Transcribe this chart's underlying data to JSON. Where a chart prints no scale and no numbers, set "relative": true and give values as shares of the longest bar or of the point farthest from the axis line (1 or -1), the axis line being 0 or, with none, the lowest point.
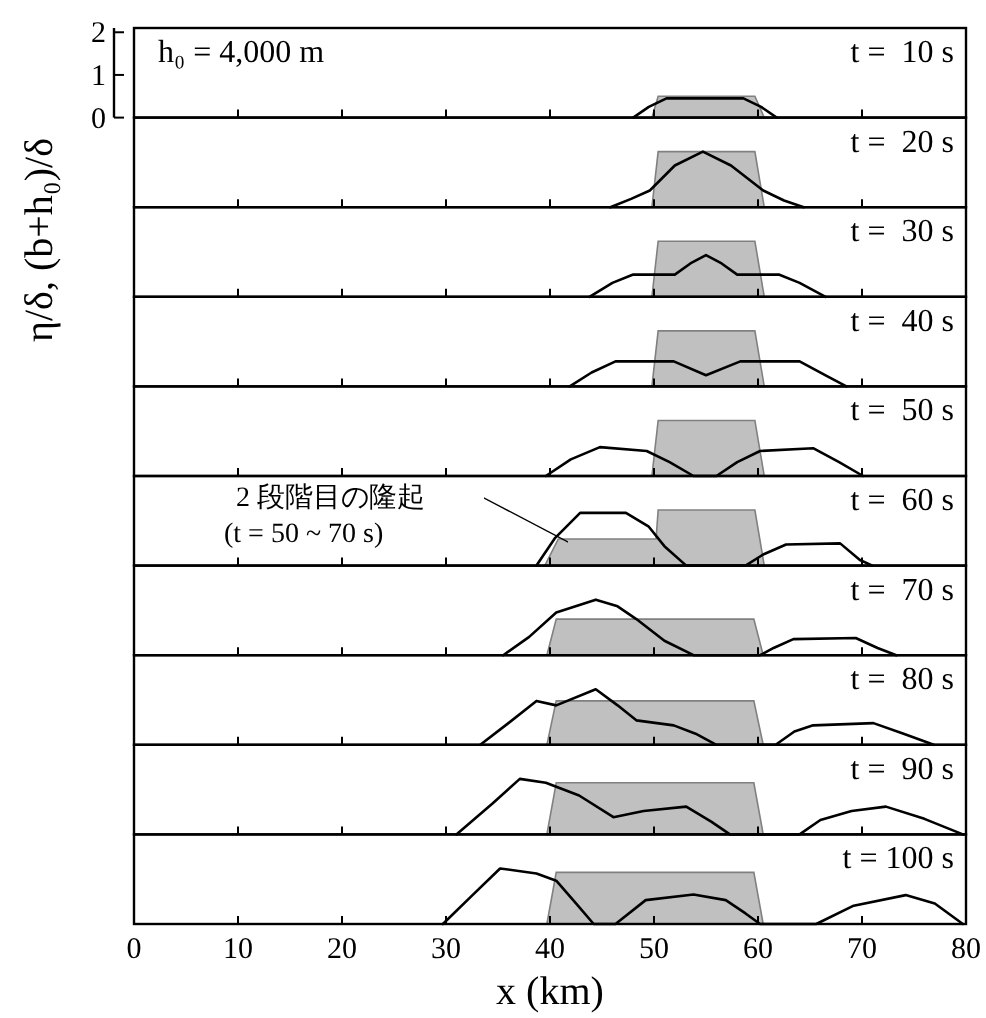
{
  "chart_data": [
    {
      "type": "area",
      "title": "t =  10 s",
      "ylabel": "η/δ, (b+h₀)/δ",
      "annotations": [
        "h₀ = 4,000 m"
      ],
      "xlim": [
        0,
        80
      ],
      "xticks": [
        0,
        10,
        20,
        30,
        40,
        50,
        60,
        70,
        80
      ],
      "ylim": [
        0,
        2.1
      ],
      "yticks": [
        0,
        1,
        2
      ],
      "tick_labels": "y",
      "series": [
        {
          "type": "area",
          "color": "#c0c0c0",
          "x": [
            49.8,
            50.4,
            59.7,
            60.6
          ],
          "values": [
            0,
            0.5,
            0.5,
            0
          ]
        },
        {
          "type": "line",
          "color": "#000000",
          "x": [
            48,
            49.5,
            51.2,
            58.6,
            60.3,
            61.8
          ],
          "values": [
            0,
            0.25,
            0.45,
            0.45,
            0.25,
            0
          ]
        }
      ]
    },
    {
      "type": "area",
      "title": "t =  20 s",
      "relative": true,
      "xlim": [
        0,
        80
      ],
      "xticks": [
        0,
        10,
        20,
        30,
        40,
        50,
        60,
        70,
        80
      ],
      "tick_labels": false,
      "series": [
        {
          "type": "area",
          "color": "#c0c0c0",
          "x": [
            49.8,
            50.4,
            59.7,
            60.6
          ],
          "values": [
            0,
            1,
            1,
            0
          ]
        },
        {
          "type": "line",
          "color": "#000000",
          "x": [
            45.8,
            47.8,
            49.6,
            52,
            54.7,
            57.4,
            60.5,
            62.5,
            64.4
          ],
          "values": [
            0,
            0.15,
            0.3,
            0.75,
            1.0,
            0.75,
            0.3,
            0.12,
            0
          ]
        }
      ]
    },
    {
      "type": "area",
      "title": "t =  30 s",
      "relative": true,
      "xlim": [
        0,
        80
      ],
      "xticks": [
        0,
        10,
        20,
        30,
        40,
        50,
        60,
        70,
        80
      ],
      "tick_labels": false,
      "series": [
        {
          "type": "area",
          "color": "#c0c0c0",
          "x": [
            49.8,
            50.4,
            59.7,
            60.6
          ],
          "values": [
            0,
            1,
            1,
            0
          ]
        },
        {
          "type": "line",
          "color": "#000000",
          "x": [
            43.8,
            46,
            48,
            52,
            53.5,
            55,
            56.5,
            58,
            62,
            64,
            66.5
          ],
          "values": [
            0,
            0.25,
            0.4,
            0.4,
            0.6,
            0.75,
            0.6,
            0.4,
            0.4,
            0.25,
            0
          ]
        }
      ]
    },
    {
      "type": "area",
      "title": "t =  40 s",
      "relative": true,
      "xlim": [
        0,
        80
      ],
      "xticks": [
        0,
        10,
        20,
        30,
        40,
        50,
        60,
        70,
        80
      ],
      "tick_labels": false,
      "series": [
        {
          "type": "area",
          "color": "#c0c0c0",
          "x": [
            49.8,
            50.4,
            59.7,
            60.6
          ],
          "values": [
            0,
            1,
            1,
            0
          ]
        },
        {
          "type": "line",
          "color": "#000000",
          "x": [
            41.9,
            44,
            46.3,
            51.9,
            55,
            58.3,
            64,
            66.5,
            68.5
          ],
          "values": [
            0,
            0.25,
            0.45,
            0.45,
            0.2,
            0.45,
            0.45,
            0.2,
            0
          ]
        }
      ]
    },
    {
      "type": "area",
      "title": "t =  50 s",
      "relative": true,
      "xlim": [
        0,
        80
      ],
      "xticks": [
        0,
        10,
        20,
        30,
        40,
        50,
        60,
        70,
        80
      ],
      "tick_labels": false,
      "series": [
        {
          "type": "area",
          "color": "#c0c0c0",
          "x": [
            49.8,
            50.4,
            59.7,
            60.6
          ],
          "values": [
            0,
            1,
            1,
            0
          ]
        },
        {
          "type": "line",
          "color": "#000000",
          "x": [
            39.6,
            42,
            44.8,
            49.3,
            51.5,
            53.8,
            56,
            58,
            60.2,
            65.3,
            67.8,
            70.1
          ],
          "values": [
            0,
            0.3,
            0.52,
            0.45,
            0.25,
            0,
            0,
            0.25,
            0.45,
            0.5,
            0.25,
            0
          ]
        }
      ]
    },
    {
      "type": "area",
      "title": "t =  60 s",
      "relative": true,
      "annotations": [
        "2 段階目の隆起\n(t = 50 ~ 70 s)"
      ],
      "xlim": [
        0,
        80
      ],
      "xticks": [
        0,
        10,
        20,
        30,
        40,
        50,
        60,
        70,
        80
      ],
      "tick_labels": false,
      "series": [
        {
          "type": "area",
          "color": "#c0c0c0",
          "x": [
            39.5,
            40.8,
            50.2,
            50.4,
            59.7,
            60.6
          ],
          "values": [
            0,
            0.48,
            0.48,
            1,
            1,
            0
          ]
        },
        {
          "type": "line",
          "color": "#000000",
          "x": [
            38.7,
            40.5,
            42.9,
            47.3,
            49.5,
            51,
            53.1,
            58.8,
            60.5,
            62.7,
            67.9,
            69.8,
            71
          ],
          "values": [
            0,
            0.5,
            0.95,
            0.95,
            0.7,
            0.35,
            0,
            0,
            0.2,
            0.38,
            0.4,
            0.1,
            0
          ]
        }
      ]
    },
    {
      "type": "area",
      "title": "t =  70 s",
      "relative": true,
      "xlim": [
        0,
        80
      ],
      "xticks": [
        0,
        10,
        20,
        30,
        40,
        50,
        60,
        70,
        80
      ],
      "tick_labels": false,
      "series": [
        {
          "type": "area",
          "color": "#c0c0c0",
          "x": [
            39.7,
            40.6,
            59.6,
            60.5
          ],
          "values": [
            0,
            0.65,
            0.65,
            0
          ]
        },
        {
          "type": "line",
          "color": "#000000",
          "x": [
            35.5,
            38,
            40.6,
            44.4,
            46.5,
            48.3,
            51,
            53.8,
            60.2,
            61.5,
            63.4,
            69.4,
            71.5,
            73.3
          ],
          "values": [
            0,
            0.33,
            0.77,
            1,
            0.88,
            0.65,
            0.26,
            0,
            0,
            0.13,
            0.29,
            0.31,
            0.13,
            0
          ]
        }
      ]
    },
    {
      "type": "area",
      "title": "t =  80 s",
      "relative": true,
      "xlim": [
        0,
        80
      ],
      "xticks": [
        0,
        10,
        20,
        30,
        40,
        50,
        60,
        70,
        80
      ],
      "tick_labels": false,
      "series": [
        {
          "type": "area",
          "color": "#c0c0c0",
          "x": [
            39.7,
            40.6,
            59.6,
            60.5
          ],
          "values": [
            0,
            0.79,
            0.79,
            0
          ]
        },
        {
          "type": "line",
          "color": "#000000",
          "x": [
            33.3,
            36,
            38.7,
            40.6,
            44.4,
            46.5,
            48.3,
            51.9,
            54,
            56,
            61.7,
            63.5,
            65.3,
            71.1,
            74,
            76.9
          ],
          "values": [
            0,
            0.39,
            0.79,
            0.71,
            1,
            0.71,
            0.44,
            0.35,
            0.2,
            0,
            0,
            0.24,
            0.35,
            0.39,
            0.2,
            0
          ]
        }
      ]
    },
    {
      "type": "area",
      "title": "t =  90 s",
      "relative": true,
      "xlim": [
        0,
        80
      ],
      "xticks": [
        0,
        10,
        20,
        30,
        40,
        50,
        60,
        70,
        80
      ],
      "tick_labels": false,
      "series": [
        {
          "type": "area",
          "color": "#c0c0c0",
          "x": [
            39.7,
            40.6,
            59.6,
            60.5
          ],
          "values": [
            0,
            0.93,
            0.93,
            0
          ]
        },
        {
          "type": "line",
          "color": "#000000",
          "x": [
            31,
            34.5,
            37.1,
            39.6,
            42.8,
            46.1,
            49,
            53.1,
            55.5,
            57.3,
            64,
            66,
            69,
            72.3,
            76,
            79.7
          ],
          "values": [
            0,
            0.56,
            1,
            0.93,
            0.7,
            0.31,
            0.42,
            0.5,
            0.23,
            0,
            0,
            0.26,
            0.42,
            0.5,
            0.28,
            0
          ]
        }
      ]
    },
    {
      "type": "area",
      "title": "t = 100 s",
      "relative": true,
      "xlabel": "x (km)",
      "xlim": [
        0,
        80
      ],
      "xticks": [
        0,
        10,
        20,
        30,
        40,
        50,
        60,
        70,
        80
      ],
      "tick_labels": "x",
      "series": [
        {
          "type": "area",
          "color": "#c0c0c0",
          "x": [
            39.7,
            40.6,
            59.6,
            60.5
          ],
          "values": [
            0,
            0.93,
            0.93,
            0
          ]
        },
        {
          "type": "line",
          "color": "#000000",
          "x": [
            29.7,
            32.5,
            35.2,
            38.7,
            40.6,
            42.5,
            44.2,
            46.3,
            49.2,
            53.8,
            56.9,
            58.8,
            60.2,
            65.6,
            69.2,
            74.2,
            77,
            79.7
          ],
          "values": [
            0,
            0.51,
            1,
            0.91,
            0.78,
            0.37,
            0,
            0,
            0.43,
            0.53,
            0.43,
            0.19,
            0,
            0,
            0.33,
            0.52,
            0.37,
            0
          ]
        }
      ]
    }
  ]
}
